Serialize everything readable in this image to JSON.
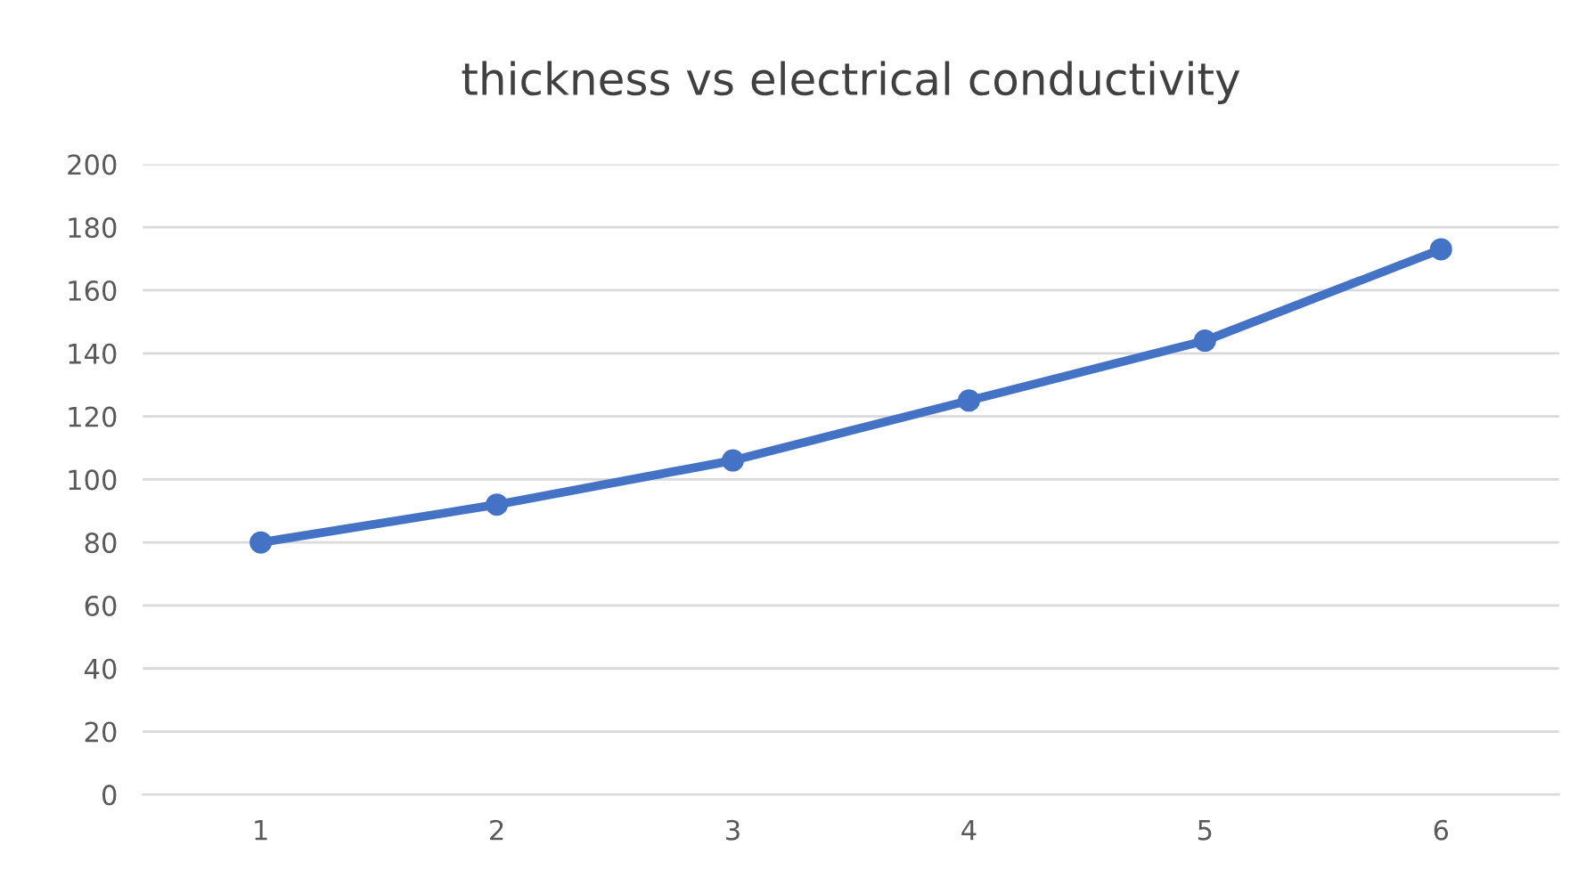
{
  "chart_data": {
    "type": "line",
    "title": "thickness vs electrical conductivity",
    "categories": [
      "1",
      "2",
      "3",
      "4",
      "5",
      "6"
    ],
    "series": [
      {
        "color": "#4472c4",
        "values": [
          80,
          92,
          106,
          125,
          144,
          173
        ]
      }
    ],
    "ylim": [
      0,
      200
    ],
    "yticks": [
      0,
      20,
      40,
      60,
      80,
      100,
      120,
      140,
      160,
      180,
      200
    ],
    "grid": "y",
    "marker": "circle",
    "line_style": "solid"
  }
}
